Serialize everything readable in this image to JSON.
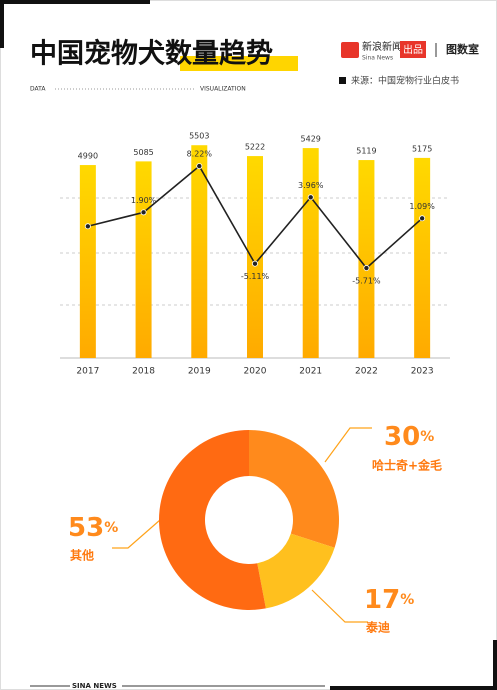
{
  "header": {
    "title": "中国宠物犬数量趋势",
    "brand": "新浪新闻",
    "brand_en": "Sina News",
    "produced": "出品",
    "studio": "图数室",
    "data_label": "DATA",
    "viz_label": "VISUALIZATION",
    "source": "来源：中国宠物行业白皮书"
  },
  "chart_data": [
    {
      "type": "bar",
      "categories": [
        "2017",
        "2018",
        "2019",
        "2020",
        "2021",
        "2022",
        "2023"
      ],
      "ylim": [
        0,
        6000
      ],
      "y2lim": [
        -18,
        13.7
      ],
      "series": [
        {
          "type": "bar",
          "color": "#ffc400",
          "values": [
            4990,
            5085,
            5503,
            5222,
            5429,
            5119,
            5175
          ]
        },
        {
          "type": "line",
          "axis": "y2",
          "color": "#222222",
          "values": [
            0,
            1.9,
            8.22,
            -5.11,
            3.96,
            -5.71,
            1.09
          ],
          "value_labels": [
            null,
            "1.90%",
            "8.22%",
            "-5.11%",
            "3.96%",
            "-5.71%",
            "1.09%"
          ]
        }
      ]
    },
    {
      "type": "donut",
      "categories": [
        "哈士奇+金毛",
        "泰迪",
        "其他"
      ],
      "values": [
        30,
        17,
        53
      ],
      "value_unit": "%",
      "colors": [
        "#ff8a1c",
        "#ffc01e",
        "#ff6a12"
      ]
    }
  ],
  "footer": "SINA NEWS"
}
